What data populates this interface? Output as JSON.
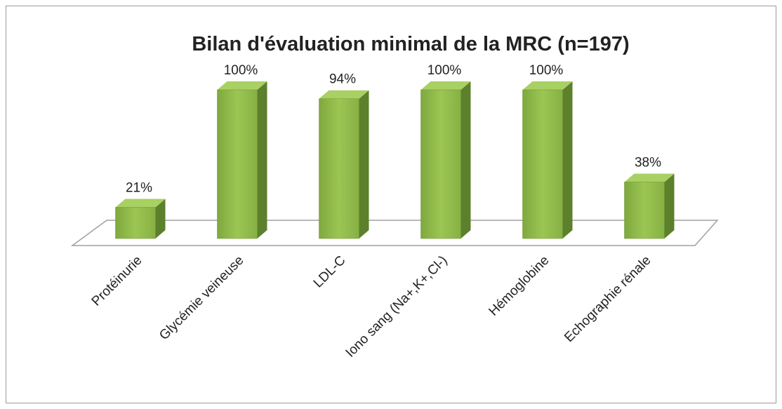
{
  "chart_data": {
    "type": "bar3d",
    "title": "Bilan d'évaluation minimal de la MRC (n=197)",
    "categories": [
      "Protéinurie",
      "Glycémie veineuse",
      "LDL-C",
      "Iono sang (Na+,K+,Cl-)",
      "Hémoglobine",
      "Echographie rénale"
    ],
    "values": [
      21,
      100,
      94,
      100,
      100,
      38
    ],
    "value_labels": [
      "21%",
      "100%",
      "94%",
      "100%",
      "100%",
      "38%"
    ],
    "color": "#8db84a"
  }
}
